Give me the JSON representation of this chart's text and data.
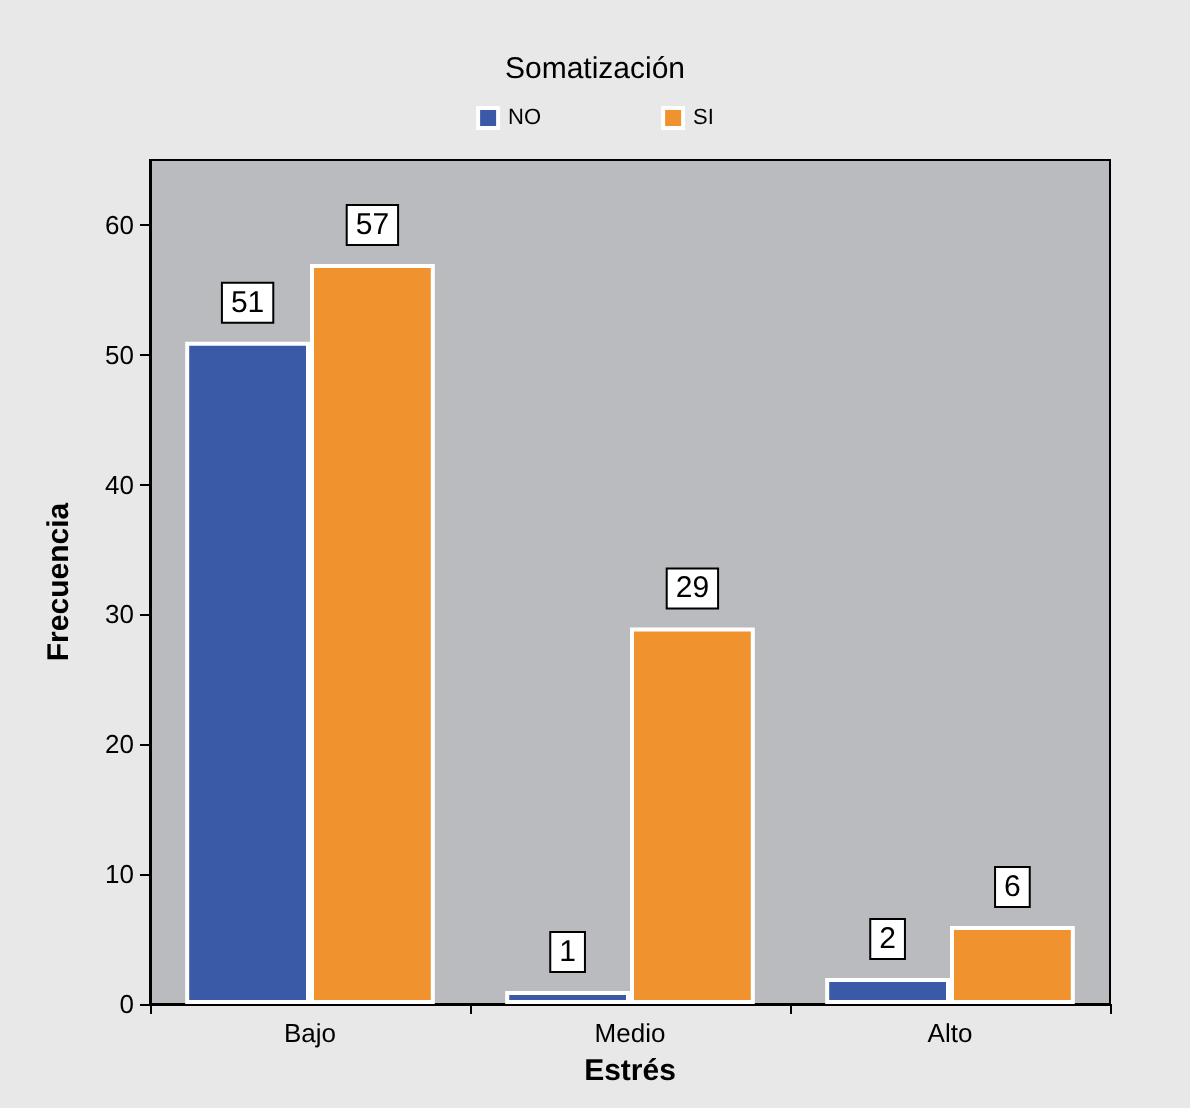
{
  "chart_data": {
    "type": "bar",
    "legend_title": "Somatización",
    "xlabel": "Estrés",
    "ylabel": "Frecuencia",
    "categories": [
      "Bajo",
      "Medio",
      "Alto"
    ],
    "series": [
      {
        "name": "NO",
        "color": "#3a5aa8",
        "values": [
          51,
          1,
          2
        ]
      },
      {
        "name": "SI",
        "color": "#f0922e",
        "values": [
          57,
          29,
          6
        ]
      }
    ],
    "ylim": [
      0,
      65
    ],
    "yticks": [
      0,
      10,
      20,
      30,
      40,
      50,
      60
    ],
    "data_labels": true,
    "legend": "top",
    "grid": false
  }
}
